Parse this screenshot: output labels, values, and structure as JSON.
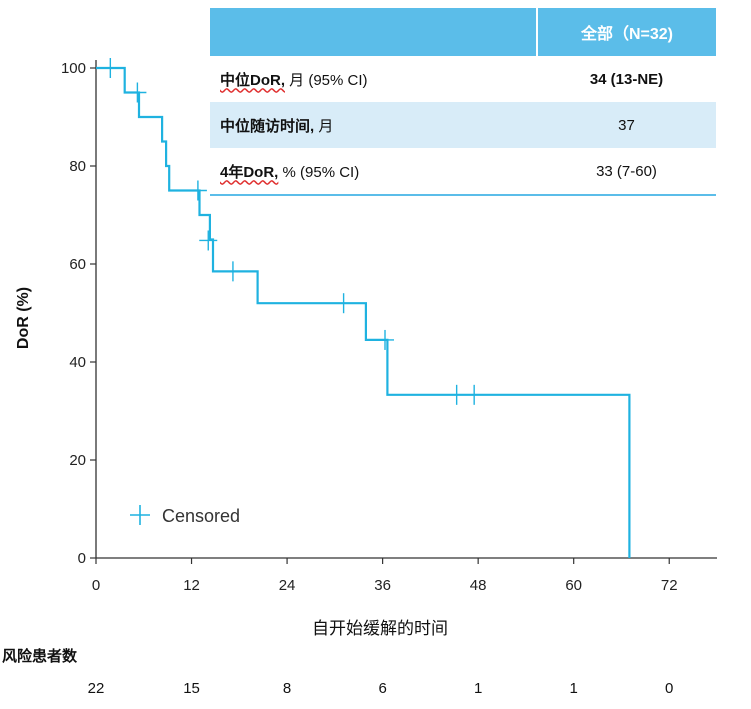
{
  "chart_data": {
    "type": "line",
    "subtype": "kaplan-meier",
    "ylabel": "DoR (%)",
    "xlabel": "自开始缓解的时间",
    "xlim": [
      0,
      78
    ],
    "ylim": [
      0,
      100
    ],
    "x_ticks": [
      0,
      12,
      24,
      36,
      48,
      60,
      72
    ],
    "y_ticks": [
      0,
      20,
      40,
      60,
      80,
      100
    ],
    "line_color": "#1fb2e0",
    "series": [
      {
        "steps": [
          [
            0,
            100
          ],
          [
            3.6,
            100
          ],
          [
            3.6,
            95
          ],
          [
            5.4,
            95
          ],
          [
            5.4,
            90
          ],
          [
            8.3,
            90
          ],
          [
            8.3,
            85
          ],
          [
            8.8,
            85
          ],
          [
            8.8,
            80
          ],
          [
            9.2,
            80
          ],
          [
            9.2,
            75
          ],
          [
            13,
            75
          ],
          [
            13,
            70
          ],
          [
            14.3,
            70
          ],
          [
            14.3,
            65
          ],
          [
            14.7,
            65
          ],
          [
            14.7,
            58.5
          ],
          [
            20.3,
            58.5
          ],
          [
            20.3,
            52
          ],
          [
            33.9,
            52
          ],
          [
            33.9,
            44.5
          ],
          [
            36.6,
            44.5
          ],
          [
            36.6,
            33.3
          ],
          [
            67,
            33.3
          ],
          [
            67,
            0
          ]
        ],
        "censored": [
          [
            1.8,
            100
          ],
          [
            5.2,
            95
          ],
          [
            12.8,
            75
          ],
          [
            14.1,
            64.8
          ],
          [
            17.2,
            58.5
          ],
          [
            31.1,
            52
          ],
          [
            36.3,
            44.5
          ],
          [
            45.3,
            33.3
          ],
          [
            47.5,
            33.3
          ]
        ]
      }
    ],
    "legend": {
      "label": "Censored",
      "position": "bottom-left"
    }
  },
  "summary_table": {
    "header": "全部（N=32)",
    "rows": [
      {
        "label_main": "中位DoR,",
        "label_rest": " 月 (95% CI)",
        "value": "34 (13-NE)"
      },
      {
        "label_main": "中位随访时间,",
        "label_rest": " 月",
        "value": "37"
      },
      {
        "label_main": "4年DoR,",
        "label_rest": " % (95% CI)",
        "value": "33 (7-60)"
      }
    ]
  },
  "risk_table": {
    "title": "风险患者数",
    "times": [
      0,
      12,
      24,
      36,
      48,
      60,
      72
    ],
    "values": [
      "22",
      "15",
      "8",
      "6",
      "1",
      "1",
      "0"
    ]
  }
}
